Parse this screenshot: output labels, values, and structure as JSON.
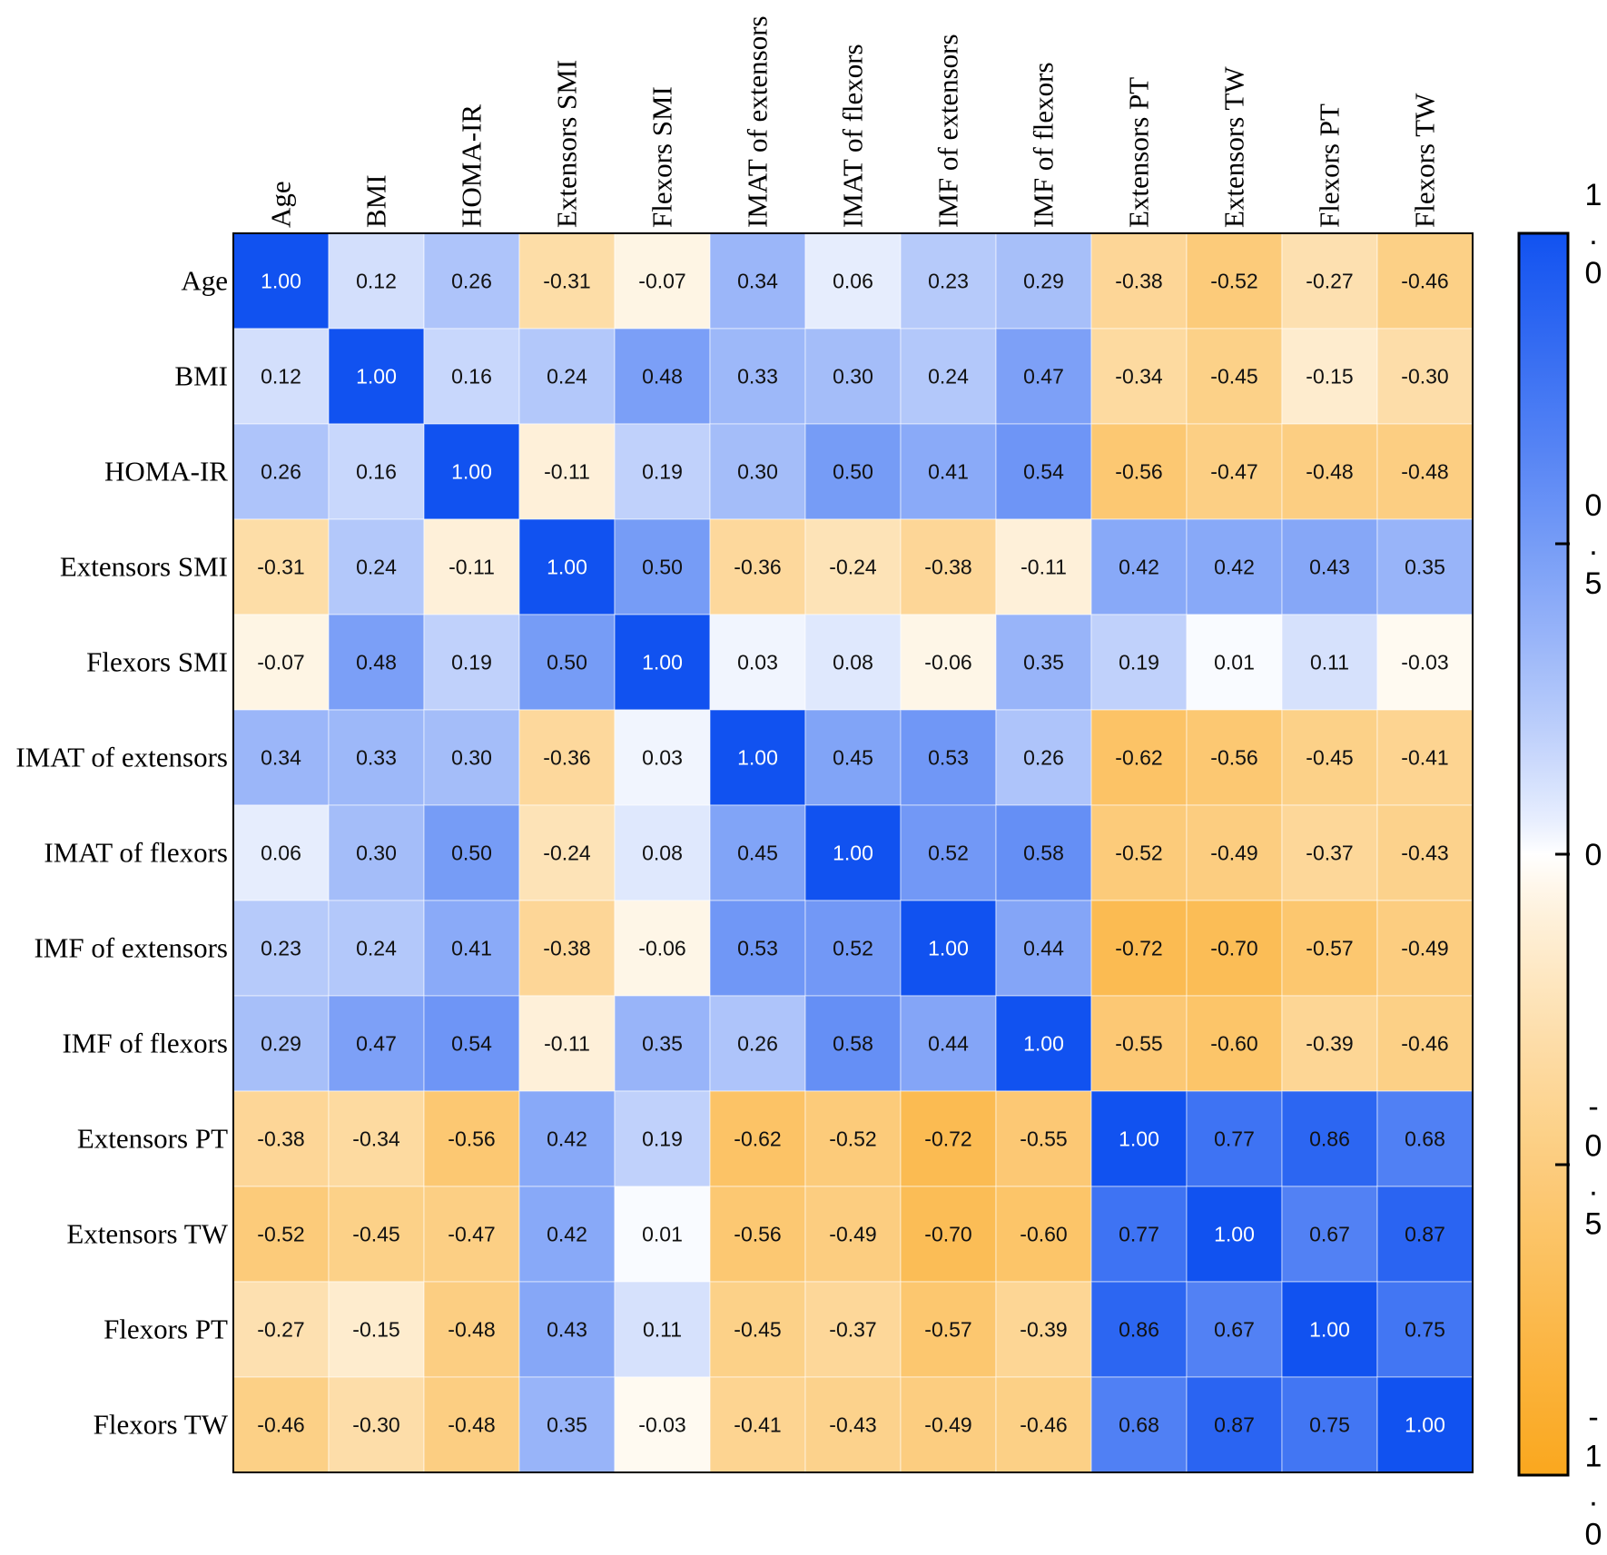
{
  "chart_data": {
    "type": "heatmap",
    "title": "",
    "xlabel": "",
    "ylabel": "",
    "columns": [
      "Age",
      "BMI",
      "HOMA-IR",
      "Extensors SMI",
      "Flexors SMI",
      "IMAT of extensors",
      "IMAT of flexors",
      "IMF of extensors",
      "IMF of flexors",
      "Extensors PT",
      "Extensors TW",
      "Flexors PT",
      "Flexors TW"
    ],
    "rows": [
      "Age",
      "BMI",
      "HOMA-IR",
      "Extensors SMI",
      "Flexors SMI",
      "IMAT of extensors",
      "IMAT of flexors",
      "IMF of extensors",
      "IMF of flexors",
      "Extensors PT",
      "Extensors TW",
      "Flexors PT",
      "Flexors TW"
    ],
    "values": [
      [
        1.0,
        0.12,
        0.26,
        -0.31,
        -0.07,
        0.34,
        0.06,
        0.23,
        0.29,
        -0.38,
        -0.52,
        -0.27,
        -0.46
      ],
      [
        0.12,
        1.0,
        0.16,
        0.24,
        0.48,
        0.33,
        0.3,
        0.24,
        0.47,
        -0.34,
        -0.45,
        -0.15,
        -0.3
      ],
      [
        0.26,
        0.16,
        1.0,
        -0.11,
        0.19,
        0.3,
        0.5,
        0.41,
        0.54,
        -0.56,
        -0.47,
        -0.48,
        -0.48
      ],
      [
        -0.31,
        0.24,
        -0.11,
        1.0,
        0.5,
        -0.36,
        -0.24,
        -0.38,
        -0.11,
        0.42,
        0.42,
        0.43,
        0.35
      ],
      [
        -0.07,
        0.48,
        0.19,
        0.5,
        1.0,
        0.03,
        0.08,
        -0.06,
        0.35,
        0.19,
        0.01,
        0.11,
        -0.03
      ],
      [
        0.34,
        0.33,
        0.3,
        -0.36,
        0.03,
        1.0,
        0.45,
        0.53,
        0.26,
        -0.62,
        -0.56,
        -0.45,
        -0.41
      ],
      [
        0.06,
        0.3,
        0.5,
        -0.24,
        0.08,
        0.45,
        1.0,
        0.52,
        0.58,
        -0.52,
        -0.49,
        -0.37,
        -0.43
      ],
      [
        0.23,
        0.24,
        0.41,
        -0.38,
        -0.06,
        0.53,
        0.52,
        1.0,
        0.44,
        -0.72,
        -0.7,
        -0.57,
        -0.49
      ],
      [
        0.29,
        0.47,
        0.54,
        -0.11,
        0.35,
        0.26,
        0.58,
        0.44,
        1.0,
        -0.55,
        -0.6,
        -0.39,
        -0.46
      ],
      [
        -0.38,
        -0.34,
        -0.56,
        0.42,
        0.19,
        -0.62,
        -0.52,
        -0.72,
        -0.55,
        1.0,
        0.77,
        0.86,
        0.68
      ],
      [
        -0.52,
        -0.45,
        -0.47,
        0.42,
        0.01,
        -0.56,
        -0.49,
        -0.7,
        -0.6,
        0.77,
        1.0,
        0.67,
        0.87
      ],
      [
        -0.27,
        -0.15,
        -0.48,
        0.43,
        0.11,
        -0.45,
        -0.37,
        -0.57,
        -0.39,
        0.86,
        0.67,
        1.0,
        0.75
      ],
      [
        -0.46,
        -0.3,
        -0.48,
        0.35,
        -0.03,
        -0.41,
        -0.43,
        -0.49,
        -0.46,
        0.68,
        0.87,
        0.75,
        1.0
      ]
    ],
    "colorbar": {
      "range": [
        -1.0,
        1.0
      ],
      "ticks": [
        1.0,
        0.5,
        0,
        -0.5,
        -1.0
      ],
      "tick_labels": [
        "1.0",
        "0.5",
        "0",
        "-0.5",
        "-1.0"
      ],
      "minor_ticks": [
        0.5,
        0,
        -0.5
      ]
    },
    "colors": {
      "positive": "#1152F0",
      "zero": "#FFFFFF",
      "negative": "#FAA71E",
      "text": "#111111",
      "text_on_diagonal": "#FFFFFF",
      "frame": "#000000"
    }
  }
}
